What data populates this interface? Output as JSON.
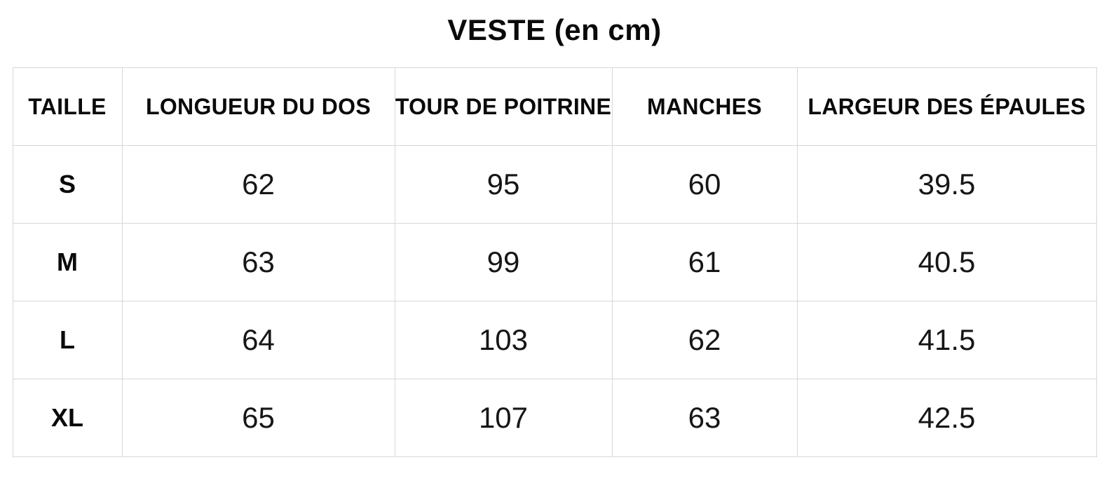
{
  "page": {
    "title": "VESTE (en cm)"
  },
  "colors": {
    "background": "#ffffff",
    "border": "#d7d7d7",
    "text": "#111111"
  },
  "table": {
    "columns": [
      "TAILLE",
      "LONGUEUR DU DOS",
      "TOUR DE POITRINE",
      "MANCHES",
      "LARGEUR DES ÉPAULES"
    ],
    "rows": [
      {
        "size": "S",
        "values": [
          "62",
          "95",
          "60",
          "39.5"
        ]
      },
      {
        "size": "M",
        "values": [
          "63",
          "99",
          "61",
          "40.5"
        ]
      },
      {
        "size": "L",
        "values": [
          "64",
          "103",
          "62",
          "41.5"
        ]
      },
      {
        "size": "XL",
        "values": [
          "65",
          "107",
          "63",
          "42.5"
        ]
      }
    ]
  },
  "chart_data": {
    "type": "table",
    "title": "VESTE (en cm)",
    "unit": "cm",
    "columns": [
      "TAILLE",
      "LONGUEUR DU DOS",
      "TOUR DE POITRINE",
      "MANCHES",
      "LARGEUR DES ÉPAULES"
    ],
    "rows": [
      [
        "S",
        62,
        95,
        60,
        39.5
      ],
      [
        "M",
        63,
        99,
        61,
        40.5
      ],
      [
        "L",
        64,
        103,
        62,
        41.5
      ],
      [
        "XL",
        65,
        107,
        63,
        42.5
      ]
    ]
  }
}
